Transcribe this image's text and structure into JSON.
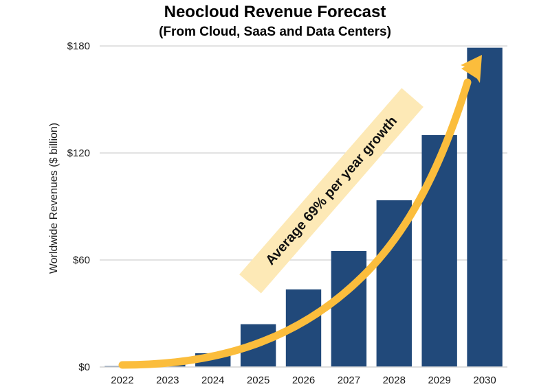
{
  "chart_data": {
    "type": "bar",
    "title": "Neocloud Revenue Forecast",
    "subtitle": "(From Cloud, SaaS and Data Centers)",
    "xlabel": "",
    "ylabel": "Worldwide Revenues ($ billion)",
    "categories": [
      "2022",
      "2023",
      "2024",
      "2025",
      "2026",
      "2027",
      "2028",
      "2029",
      "2030"
    ],
    "values": [
      0.5,
      1.5,
      7.7,
      24,
      43.5,
      65,
      93.5,
      130,
      179
    ],
    "ylim": [
      0,
      180
    ],
    "yticks": [
      0,
      60,
      120,
      180
    ],
    "ytick_labels": [
      "$0",
      "$60",
      "$120",
      "$180"
    ],
    "grid": true,
    "annotation": {
      "text": "Average 69% per year growth",
      "type": "growth-arrow",
      "growth_rate_percent": 69
    },
    "colors": {
      "bar": "#21497a",
      "arrow": "#fbbd3c",
      "annotation_band": "#fde9b6",
      "grid": "#d9d9d9"
    }
  }
}
